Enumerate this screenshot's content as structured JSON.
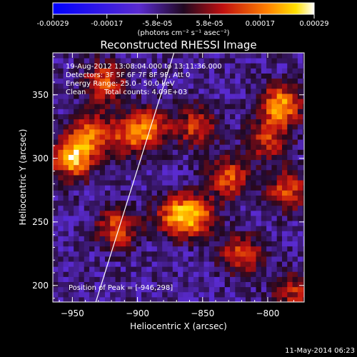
{
  "chart_data": {
    "type": "heatmap",
    "title": "Reconstructed RHESSI Image",
    "xlabel": "Heliocentric X (arcsec)",
    "ylabel": "Heliocentric Y (arcsec)",
    "xlim": [
      -965,
      -772
    ],
    "ylim": [
      187,
      383
    ],
    "x_ticks": [
      -950,
      -900,
      -850,
      -800
    ],
    "y_ticks": [
      200,
      250,
      300,
      350
    ],
    "colorbar": {
      "ticks": [
        "-0.00029",
        "-0.00017",
        "-5.8e-05",
        "5.8e-05",
        "0.00017",
        "0.00029"
      ],
      "unit_label": "(photons cm⁻² s⁻¹ asec⁻²)",
      "range": [
        -0.00029,
        0.00029
      ]
    },
    "annotations": {
      "time_range": "19-Aug-2012 13:08:04.000 to 13:11:36.000",
      "detectors": "Detectors: 3F 5F 6F 7F 8F 9F, Att 0",
      "energy_range": "Energy Range: 25.0 - 50.0 keV",
      "method": "Clean",
      "total_counts": "Total counts: 4.09E+03",
      "peak": "Position of Peak = [-946,298]"
    },
    "hot_spots": [
      {
        "x": -950,
        "y": 300,
        "value": 0.00029
      },
      {
        "x": -935,
        "y": 320,
        "value": 0.00022
      },
      {
        "x": -915,
        "y": 245,
        "value": 0.0002
      },
      {
        "x": -905,
        "y": 318,
        "value": 0.00018
      },
      {
        "x": -890,
        "y": 325,
        "value": 0.00017
      },
      {
        "x": -870,
        "y": 255,
        "value": 0.00022
      },
      {
        "x": -855,
        "y": 255,
        "value": 0.0002
      },
      {
        "x": -855,
        "y": 325,
        "value": 0.00017
      },
      {
        "x": -830,
        "y": 285,
        "value": 0.0002
      },
      {
        "x": -820,
        "y": 225,
        "value": 0.00019
      },
      {
        "x": -800,
        "y": 315,
        "value": 0.00017
      },
      {
        "x": -790,
        "y": 342,
        "value": 0.00027
      },
      {
        "x": -785,
        "y": 275,
        "value": 0.00018
      },
      {
        "x": -780,
        "y": 195,
        "value": 0.00015
      },
      {
        "x": -925,
        "y": 360,
        "value": 0.0002
      }
    ],
    "limb_line": [
      [
        -932,
        187
      ],
      [
        -872,
        383
      ]
    ]
  },
  "footer_date": "11-May-2014 06:23"
}
